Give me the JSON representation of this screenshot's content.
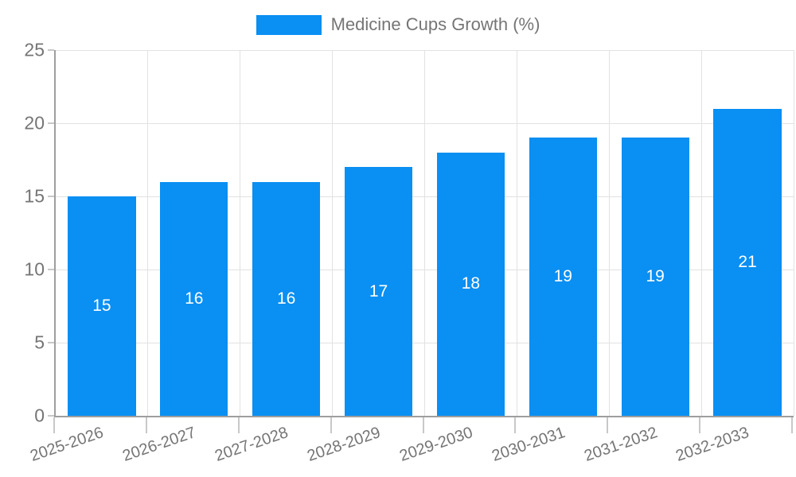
{
  "legend": {
    "label": "Medicine Cups Growth (%)",
    "position": "top"
  },
  "chart_data": {
    "type": "bar",
    "title": "Medicine Cups Growth (%)",
    "categories": [
      "2025-2026",
      "2026-2027",
      "2027-2028",
      "2028-2029",
      "2029-2030",
      "2030-2031",
      "2031-2032",
      "2032-2033"
    ],
    "values": [
      15,
      16,
      16,
      17,
      18,
      19,
      19,
      21
    ],
    "xlabel": "",
    "ylabel": "",
    "ylim": [
      0,
      25
    ],
    "yticks": [
      0,
      5,
      10,
      15,
      20,
      25
    ],
    "grid": true,
    "legend_position": "top",
    "colors": {
      "bar": "#0a8ff2",
      "bar_label": "#ffffff",
      "axis_line": "#9e9e9e",
      "gridline": "#e2e2e2",
      "tick": "#c8c8c8",
      "text": "#757575"
    }
  }
}
